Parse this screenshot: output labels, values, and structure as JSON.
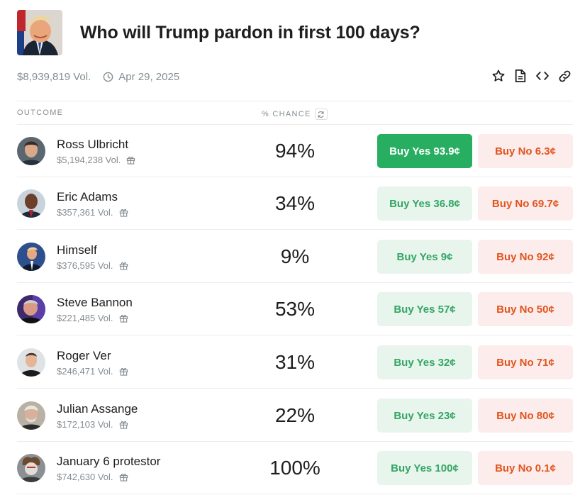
{
  "market": {
    "title": "Who will Trump pardon in first 100 days?",
    "volume": "$8,939,819 Vol.",
    "end_date": "Apr 29, 2025",
    "icon": "trump-thumbnail"
  },
  "actions": [
    "star-icon",
    "document-icon",
    "embed-code-icon",
    "link-icon"
  ],
  "columns": {
    "outcome": "OUTCOME",
    "chance": "% CHANCE"
  },
  "colors": {
    "yes_active": "#27ae60",
    "yes_bg": "#e7f5ec",
    "yes_text": "#35a565",
    "no_bg": "#fceceb",
    "no_text": "#e2541e"
  },
  "outcomes": [
    {
      "name": "Ross Ulbricht",
      "volume": "$5,194,238 Vol.",
      "chance": "94%",
      "yes": "Buy Yes 93.9¢",
      "no": "Buy No 6.3¢"
    },
    {
      "name": "Eric Adams",
      "volume": "$357,361 Vol.",
      "chance": "34%",
      "yes": "Buy Yes 36.8¢",
      "no": "Buy No 69.7¢"
    },
    {
      "name": "Himself",
      "volume": "$376,595 Vol.",
      "chance": "9%",
      "yes": "Buy Yes 9¢",
      "no": "Buy No 92¢"
    },
    {
      "name": "Steve Bannon",
      "volume": "$221,485 Vol.",
      "chance": "53%",
      "yes": "Buy Yes 57¢",
      "no": "Buy No 50¢"
    },
    {
      "name": "Roger Ver",
      "volume": "$246,471 Vol.",
      "chance": "31%",
      "yes": "Buy Yes 32¢",
      "no": "Buy No 71¢"
    },
    {
      "name": "Julian Assange",
      "volume": "$172,103 Vol.",
      "chance": "22%",
      "yes": "Buy Yes 23¢",
      "no": "Buy No 80¢"
    },
    {
      "name": "January 6 protestor",
      "volume": "$742,630 Vol.",
      "chance": "100%",
      "yes": "Buy Yes 100¢",
      "no": "Buy No 0.1¢"
    }
  ]
}
